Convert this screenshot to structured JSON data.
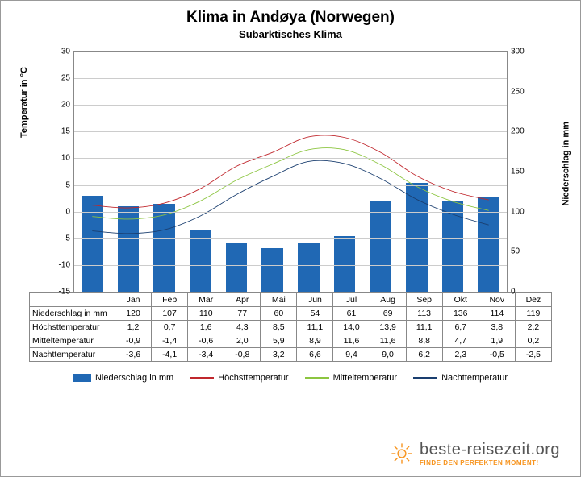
{
  "title": "Klima in Andøya (Norwegen)",
  "subtitle": "Subarktisches Klima",
  "axes": {
    "y_left_label": "Temperatur in °C",
    "y_right_label": "Niederschlag in mm",
    "y_left_min": -15,
    "y_left_max": 30,
    "y_left_step": 5,
    "y_right_min": 0,
    "y_right_max": 300,
    "y_right_step": 50,
    "grid_color": "#cccccc",
    "axis_color": "#888888"
  },
  "months": [
    "Jan",
    "Feb",
    "Mar",
    "Apr",
    "Mai",
    "Jun",
    "Jul",
    "Aug",
    "Sep",
    "Okt",
    "Nov",
    "Dez"
  ],
  "series": {
    "bar": {
      "label": "Niederschlag in mm",
      "color": "#2068b4",
      "values": [
        120,
        107,
        110,
        77,
        60,
        54,
        61,
        69,
        113,
        136,
        114,
        119
      ]
    },
    "high": {
      "label": "Höchsttemperatur",
      "color": "#c0272d",
      "width": 2.5,
      "values": [
        1.2,
        0.7,
        1.6,
        4.3,
        8.5,
        11.1,
        14.0,
        13.9,
        11.1,
        6.7,
        3.8,
        2.2
      ]
    },
    "mean": {
      "label": "Mitteltemperatur",
      "color": "#8cc540",
      "width": 2.5,
      "values": [
        -0.9,
        -1.4,
        -0.6,
        2.0,
        5.9,
        8.9,
        11.6,
        11.6,
        8.8,
        4.7,
        1.9,
        0.2
      ]
    },
    "low": {
      "label": "Nachttemperatur",
      "color": "#1a3e6f",
      "width": 2.5,
      "values": [
        -3.6,
        -4.1,
        -3.4,
        -0.8,
        3.2,
        6.6,
        9.4,
        9.0,
        6.2,
        2.3,
        -0.5,
        -2.5
      ]
    }
  },
  "row_headers": {
    "bar": "Niederschlag in mm",
    "high": "Höchsttemperatur",
    "mean": "Mitteltemperatur",
    "low": "Nachttemperatur"
  },
  "legend": {
    "items": [
      {
        "key": "bar",
        "type": "bar"
      },
      {
        "key": "high",
        "type": "line"
      },
      {
        "key": "mean",
        "type": "line"
      },
      {
        "key": "low",
        "type": "line"
      }
    ]
  },
  "footer": {
    "brand": "beste-reisezeit.org",
    "tagline": "FINDE DEN PERFEKTEN MOMENT!"
  },
  "display": {
    "bar_values": [
      "120",
      "107",
      "110",
      "77",
      "60",
      "54",
      "61",
      "69",
      "113",
      "136",
      "114",
      "119"
    ],
    "high_values": [
      "1,2",
      "0,7",
      "1,6",
      "4,3",
      "8,5",
      "11,1",
      "14,0",
      "13,9",
      "11,1",
      "6,7",
      "3,8",
      "2,2"
    ],
    "mean_values": [
      "-0,9",
      "-1,4",
      "-0,6",
      "2,0",
      "5,9",
      "8,9",
      "11,6",
      "11,6",
      "8,8",
      "4,7",
      "1,9",
      "0,2"
    ],
    "low_values": [
      "-3,6",
      "-4,1",
      "-3,4",
      "-0,8",
      "3,2",
      "6,6",
      "9,4",
      "9,0",
      "6,2",
      "2,3",
      "-0,5",
      "-2,5"
    ]
  }
}
